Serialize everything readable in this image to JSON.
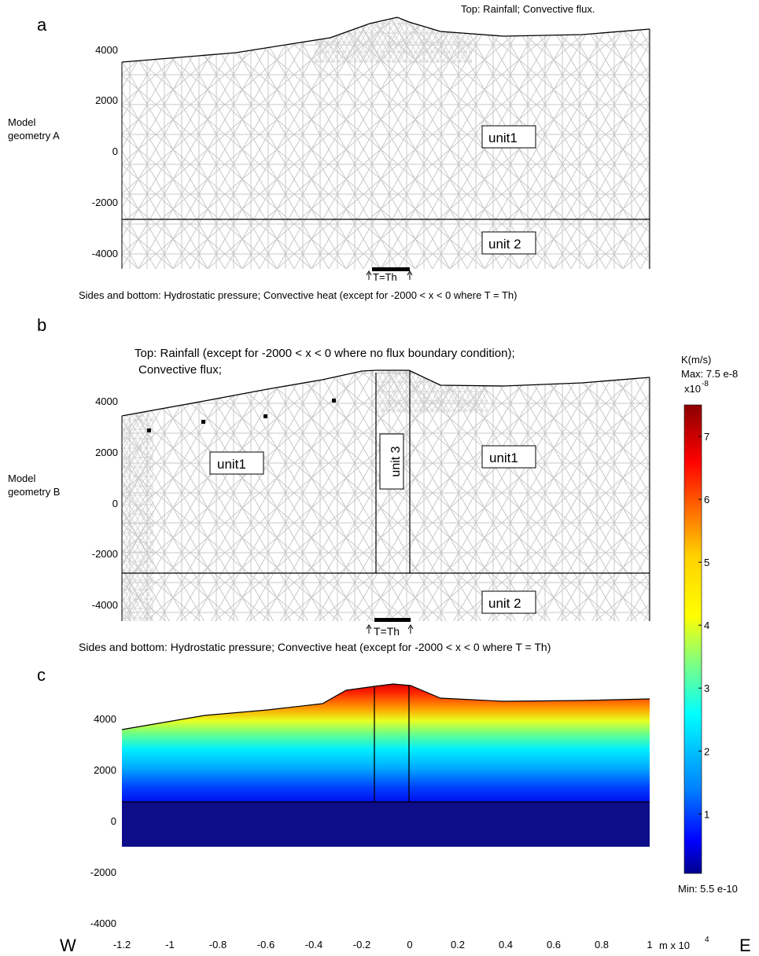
{
  "panel_a": {
    "letter": "a",
    "top_label": "Top: Rainfall; Convective flux.",
    "side_label_line1": "Model",
    "side_label_line2": "geometry A",
    "yticks": [
      "4000",
      "2000",
      "0",
      "-2000",
      "-4000"
    ],
    "unit_upper": "unit1",
    "unit_lower": "unit 2",
    "th_label": "T=Th",
    "bottom_label": "Sides and bottom: Hydrostatic pressure; Convective heat (except for -2000 < x < 0 where T = Th)"
  },
  "panel_b": {
    "letter": "b",
    "top_label_line1": "Top: Rainfall (except for -2000 < x < 0 where no flux boundary condition);",
    "top_label_line2": "Convective flux;",
    "side_label_line1": "Model",
    "side_label_line2": "geometry B",
    "yticks": [
      "4000",
      "2000",
      "0",
      "-2000",
      "-4000"
    ],
    "unit_left": "unit1",
    "unit_center": "unit 3",
    "unit_right": "unit1",
    "unit_lower": "unit 2",
    "th_label": "T=Th",
    "bottom_label": "Sides and bottom: Hydrostatic pressure; Convective heat (except for -2000 < x < 0 where T = Th)"
  },
  "panel_c": {
    "letter": "c",
    "yticks": [
      "4000",
      "2000",
      "0",
      "-2000",
      "-4000"
    ],
    "xticks": [
      "-1.2",
      "-1",
      "-0.8",
      "-0.6",
      "-0.4",
      "-0.2",
      "0",
      "0.2",
      "0.4",
      "0.6",
      "0.8",
      "1"
    ],
    "x_unit": "m x 10",
    "x_unit_exp": "4",
    "west": "W",
    "east": "E"
  },
  "colorbar": {
    "title": "K(m/s)",
    "max_label": "Max: 7.5 e-8",
    "scale_base": "x10",
    "scale_exp": "-8",
    "ticks": [
      "7",
      "6",
      "5",
      "4",
      "3",
      "2",
      "1"
    ],
    "min_label": "Min: 5.5 e-10",
    "max_value": 7.5e-08,
    "min_value": 5.5e-10
  },
  "colors": {
    "mesh": "#c8c8c8",
    "boundary": "#000000",
    "unit2_fill": "#0d0d8a"
  }
}
